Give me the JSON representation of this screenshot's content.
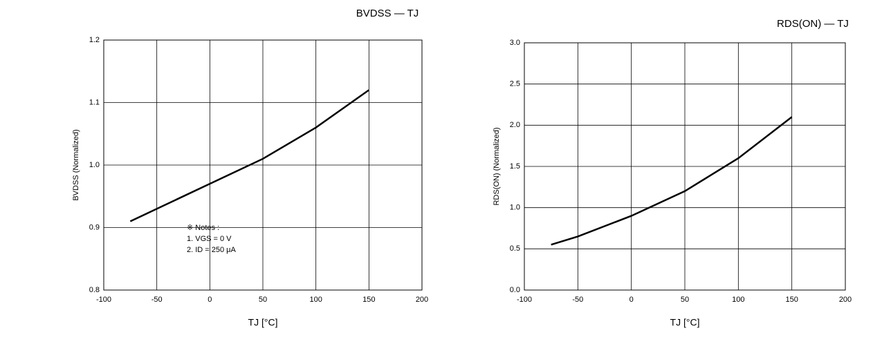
{
  "chart_data": [
    {
      "type": "line",
      "title": "BVDSS — TJ",
      "x_label": "TJ [°C]",
      "y_label": "BVDSS (Normalized)",
      "x": [
        -75,
        -50,
        0,
        50,
        100,
        150
      ],
      "series": [
        {
          "name": "BVDSS",
          "color": "#000000",
          "values": [
            0.91,
            0.93,
            0.97,
            1.01,
            1.06,
            1.12
          ]
        }
      ],
      "xlim": [
        -100,
        200
      ],
      "xticks": [
        -100,
        -50,
        0,
        50,
        100,
        150,
        200
      ],
      "ylim": [
        0.8,
        1.2
      ],
      "yticks": [
        0.8,
        0.9,
        {
          "value": 1.0,
          "label": "1.0"
        },
        1.1,
        1.2
      ],
      "grid": true,
      "notes": [
        "※ Notes :",
        "1. VGS = 0 V",
        "2. ID = 250 μA"
      ]
    },
    {
      "type": "line",
      "title": "RDS(ON) — TJ",
      "x_label": "TJ [°C]",
      "y_label": "RDS(ON) (Normalized)",
      "x": [
        -75,
        -50,
        0,
        50,
        100,
        150
      ],
      "series": [
        {
          "name": "RDS(ON)",
          "color": "#000000",
          "values": [
            0.55,
            0.65,
            0.9,
            1.2,
            1.6,
            2.1
          ]
        }
      ],
      "xlim": [
        -100,
        200
      ],
      "xticks": [
        -100,
        -50,
        0,
        50,
        100,
        150,
        200
      ],
      "ylim": [
        0,
        3
      ],
      "yticks": [
        {
          "value": 0,
          "label": "0.0"
        },
        0.5,
        {
          "value": 1,
          "label": "1.0"
        },
        1.5,
        {
          "value": 2,
          "label": "2.0"
        },
        2.5,
        {
          "value": 3,
          "label": "3.0"
        }
      ],
      "grid": true
    }
  ]
}
